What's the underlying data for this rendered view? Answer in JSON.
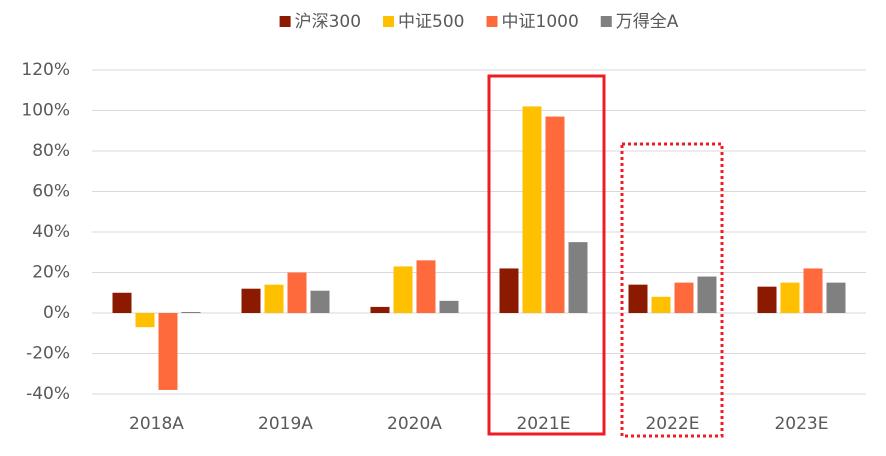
{
  "chart_data": {
    "type": "bar",
    "categories": [
      "2018A",
      "2019A",
      "2020A",
      "2021E",
      "2022E",
      "2023E"
    ],
    "series": [
      {
        "name": "沪深300",
        "color": "#8b1a00",
        "values": [
          10,
          12,
          3,
          22,
          14,
          13
        ]
      },
      {
        "name": "中证500",
        "color": "#ffc000",
        "values": [
          -7,
          14,
          23,
          102,
          8,
          15
        ]
      },
      {
        "name": "中证1000",
        "color": "#ff6a3d",
        "values": [
          -38,
          20,
          26,
          97,
          15,
          22
        ]
      },
      {
        "name": "万得全A",
        "color": "#808080",
        "values": [
          0.5,
          11,
          6,
          35,
          18,
          15
        ]
      }
    ],
    "ylim": [
      -40,
      120
    ],
    "yticks": [
      {
        "value": -40,
        "label": "-40%"
      },
      {
        "value": -20,
        "label": "-20%"
      },
      {
        "value": 0,
        "label": "0%"
      },
      {
        "value": 20,
        "label": "20%"
      },
      {
        "value": 40,
        "label": "40%"
      },
      {
        "value": 60,
        "label": "60%"
      },
      {
        "value": 80,
        "label": "80%"
      },
      {
        "value": 100,
        "label": "100%"
      },
      {
        "value": 120,
        "label": "120%"
      }
    ],
    "grid": true,
    "legend": "top"
  }
}
